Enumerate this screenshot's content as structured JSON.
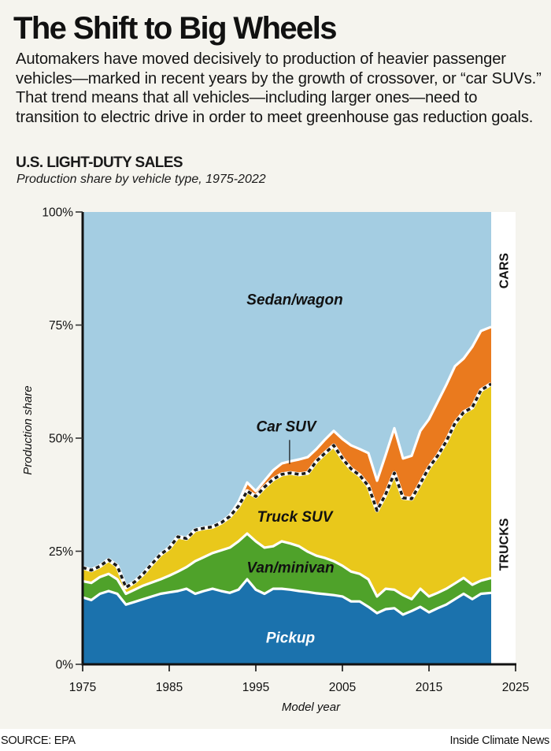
{
  "header": {
    "title": "The Shift to Big Wheels",
    "dek": "Automakers have moved decisively to production of heavier passenger vehicles—marked in recent years by the growth of crossover, or “car SUVs.” That trend means that all vehicles—including larger ones—need to transition to electric drive in order to meet greenhouse gas reduction goals."
  },
  "footer": {
    "source": "SOURCE: EPA",
    "credit": "Inside Climate News"
  },
  "chart_data": {
    "type": "area",
    "stacked": true,
    "title": "U.S. LIGHT-DUTY SALES",
    "subtitle": "Production share by vehicle type, 1975-2022",
    "xlabel": "Model year",
    "ylabel": "Production share",
    "xlim": [
      1975,
      2025
    ],
    "ylim": [
      0,
      100
    ],
    "x_ticks": [
      1975,
      1985,
      1995,
      2005,
      2015,
      2025
    ],
    "y_ticks": [
      0,
      25,
      50,
      75,
      100
    ],
    "y_tick_labels": [
      "0%",
      "25%",
      "50%",
      "75%",
      "100%"
    ],
    "grid": false,
    "x": [
      1975,
      1976,
      1977,
      1978,
      1979,
      1980,
      1981,
      1982,
      1983,
      1984,
      1985,
      1986,
      1987,
      1988,
      1989,
      1990,
      1991,
      1992,
      1993,
      1994,
      1995,
      1996,
      1997,
      1998,
      1999,
      2000,
      2001,
      2002,
      2003,
      2004,
      2005,
      2006,
      2007,
      2008,
      2009,
      2010,
      2011,
      2012,
      2013,
      2014,
      2015,
      2016,
      2017,
      2018,
      2019,
      2020,
      2021,
      2022
    ],
    "series": [
      {
        "name": "Pickup",
        "color": "#1b72ad",
        "label_color": "#ffffff",
        "values": [
          14.8,
          14.2,
          15.6,
          16.2,
          15.6,
          13.2,
          13.8,
          14.4,
          15.0,
          15.6,
          15.9,
          16.2,
          16.7,
          15.6,
          16.2,
          16.7,
          16.2,
          15.8,
          16.5,
          18.8,
          16.5,
          15.6,
          16.7,
          16.7,
          16.5,
          16.2,
          16.0,
          15.7,
          15.5,
          15.3,
          15.0,
          13.9,
          13.9,
          12.7,
          11.3,
          12.2,
          12.4,
          11.0,
          11.8,
          12.7,
          11.5,
          12.4,
          13.2,
          14.4,
          15.6,
          14.4,
          15.6,
          15.8
        ]
      },
      {
        "name": "Van/minivan",
        "color": "#4fa22a",
        "label_color": "#111111",
        "values": [
          3.6,
          3.8,
          3.7,
          3.8,
          3.2,
          2.4,
          2.7,
          3.0,
          3.1,
          3.2,
          3.7,
          4.3,
          4.8,
          7.2,
          7.5,
          7.9,
          9.0,
          10.0,
          10.7,
          10.1,
          10.7,
          10.2,
          9.4,
          10.5,
          10.2,
          9.9,
          8.9,
          8.3,
          8.0,
          7.5,
          6.8,
          6.6,
          6.1,
          6.1,
          3.7,
          4.5,
          4.1,
          4.3,
          2.6,
          4.0,
          3.5,
          3.4,
          3.5,
          3.5,
          3.5,
          3.2,
          2.9,
          3.3
        ]
      },
      {
        "name": "Truck SUV",
        "color": "#e9c81b",
        "label_color": "#111111",
        "values": [
          3.0,
          2.8,
          2.4,
          3.1,
          2.9,
          1.4,
          1.7,
          2.6,
          4.1,
          5.5,
          6.1,
          7.7,
          6.3,
          6.9,
          6.4,
          5.8,
          6.1,
          6.9,
          7.8,
          9.4,
          9.9,
          13.4,
          14.8,
          14.8,
          15.6,
          15.9,
          17.4,
          20.9,
          23.2,
          25.6,
          23.7,
          22.7,
          21.8,
          20.6,
          19.0,
          20.9,
          25.8,
          21.5,
          22.2,
          23.3,
          28.5,
          30.3,
          32.6,
          35.4,
          36.6,
          39.2,
          42.1,
          42.9
        ]
      },
      {
        "name": "Car SUV",
        "color": "#ea7a1e",
        "label_color": "#111111",
        "values": [
          0,
          0,
          0,
          0,
          0,
          0,
          0,
          0,
          0,
          0,
          0,
          0,
          0,
          0,
          0,
          0,
          0,
          0.3,
          0.9,
          1.9,
          1.2,
          1.4,
          2.0,
          2.4,
          2.6,
          3.3,
          3.5,
          2.7,
          3.0,
          3.2,
          4.3,
          5.2,
          5.8,
          7.3,
          6.6,
          8.7,
          9.9,
          8.7,
          9.5,
          11.6,
          10.7,
          11.9,
          12.5,
          12.6,
          11.9,
          13.4,
          13.1,
          12.6
        ]
      },
      {
        "name": "Sedan/wagon",
        "color": "#a4cde2",
        "label_color": "#111111",
        "values": [
          78.6,
          79.2,
          78.3,
          76.9,
          78.3,
          83.0,
          81.8,
          80.0,
          77.8,
          75.7,
          74.3,
          71.8,
          72.2,
          70.3,
          69.9,
          69.6,
          68.7,
          67.0,
          64.1,
          59.8,
          61.7,
          59.4,
          57.1,
          55.6,
          55.1,
          54.7,
          54.2,
          52.4,
          50.3,
          48.4,
          50.2,
          51.6,
          52.4,
          53.3,
          59.4,
          53.7,
          47.8,
          54.5,
          53.9,
          48.4,
          45.8,
          42.0,
          38.2,
          34.1,
          32.4,
          29.8,
          26.3,
          25.4
        ]
      }
    ],
    "group_labels": [
      {
        "text": "CARS",
        "covers": [
          "Sedan/wagon",
          "Car SUV"
        ]
      },
      {
        "text": "TRUCKS",
        "covers": [
          "Pickup",
          "Van/minivan",
          "Truck SUV"
        ]
      }
    ],
    "divider": "dashed line between Truck SUV and Car SUV (cars vs trucks boundary)",
    "annotations": [
      {
        "text": "Car SUV",
        "points_to": "Car SUV",
        "year": 1999
      }
    ]
  }
}
